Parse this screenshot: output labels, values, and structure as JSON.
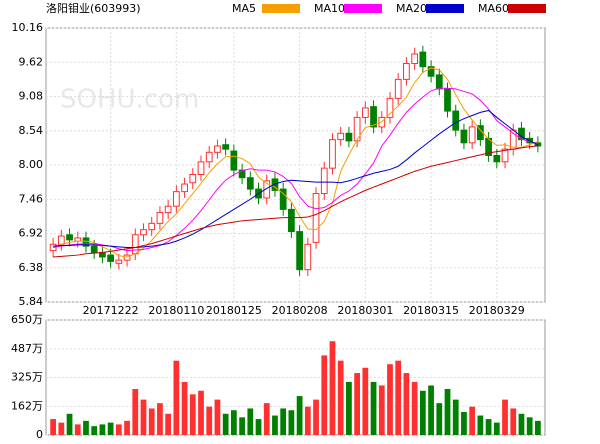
{
  "chart_data": {
    "type": "candlestick",
    "title": "洛阳钼业(603993)",
    "watermark": "SOHU.com",
    "categories": [
      null,
      null,
      null,
      null,
      null,
      null,
      null,
      "20171222",
      null,
      null,
      null,
      null,
      null,
      null,
      null,
      "20180110",
      null,
      null,
      null,
      null,
      null,
      null,
      "20180125",
      null,
      null,
      null,
      null,
      null,
      null,
      null,
      "20180208",
      null,
      null,
      null,
      null,
      null,
      null,
      null,
      "20180301",
      null,
      null,
      null,
      null,
      null,
      null,
      null,
      "20180315",
      null,
      null,
      null,
      null,
      null,
      null,
      null,
      "20180329",
      null,
      null,
      null,
      null,
      null
    ],
    "open": [
      6.65,
      6.75,
      6.9,
      6.8,
      6.85,
      6.72,
      6.62,
      6.58,
      6.45,
      6.5,
      6.6,
      6.9,
      6.98,
      7.08,
      7.25,
      7.35,
      7.58,
      7.72,
      7.85,
      8.05,
      8.2,
      8.32,
      8.22,
      7.92,
      7.8,
      7.62,
      7.48,
      7.78,
      7.62,
      7.3,
      6.95,
      6.35,
      6.78,
      7.55,
      7.95,
      8.4,
      8.5,
      8.38,
      8.75,
      8.92,
      8.6,
      8.75,
      9.05,
      9.35,
      9.6,
      9.78,
      9.55,
      9.42,
      9.2,
      8.85,
      8.55,
      8.35,
      8.62,
      8.42,
      8.15,
      8.05,
      8.25,
      8.58,
      8.42,
      8.35
    ],
    "high": [
      6.85,
      6.98,
      7.0,
      6.95,
      6.95,
      6.82,
      6.72,
      6.68,
      6.6,
      6.68,
      7.0,
      7.08,
      7.18,
      7.35,
      7.45,
      7.68,
      7.8,
      7.95,
      8.15,
      8.3,
      8.4,
      8.42,
      8.32,
      8.02,
      7.9,
      7.72,
      7.85,
      7.88,
      7.72,
      7.4,
      7.05,
      6.85,
      7.65,
      8.05,
      8.5,
      8.6,
      8.6,
      8.85,
      9.0,
      9.02,
      8.85,
      9.15,
      9.45,
      9.7,
      9.85,
      9.88,
      9.65,
      9.52,
      9.3,
      8.95,
      8.65,
      8.7,
      8.72,
      8.52,
      8.25,
      8.35,
      8.65,
      8.68,
      8.52,
      8.45
    ],
    "low": [
      6.55,
      6.65,
      6.72,
      6.7,
      6.62,
      6.52,
      6.45,
      6.38,
      6.35,
      6.4,
      6.5,
      6.8,
      6.88,
      6.98,
      7.15,
      7.25,
      7.48,
      7.62,
      7.75,
      7.95,
      8.1,
      8.15,
      7.82,
      7.7,
      7.52,
      7.38,
      7.38,
      7.5,
      7.2,
      6.85,
      6.25,
      6.25,
      6.68,
      7.45,
      7.85,
      8.3,
      8.28,
      8.28,
      8.65,
      8.5,
      8.5,
      8.65,
      8.95,
      9.25,
      9.5,
      9.45,
      9.3,
      9.1,
      8.75,
      8.45,
      8.25,
      8.25,
      8.3,
      8.05,
      7.95,
      7.95,
      8.15,
      8.3,
      8.25,
      8.2
    ],
    "close": [
      6.75,
      6.88,
      6.82,
      6.85,
      6.72,
      6.62,
      6.55,
      6.48,
      6.5,
      6.58,
      6.9,
      6.98,
      7.08,
      7.25,
      7.35,
      7.58,
      7.7,
      7.85,
      8.05,
      8.2,
      8.3,
      8.25,
      7.92,
      7.8,
      7.62,
      7.48,
      7.75,
      7.6,
      7.3,
      6.95,
      6.35,
      6.75,
      7.55,
      7.95,
      8.4,
      8.5,
      8.38,
      8.75,
      8.9,
      8.6,
      8.75,
      9.05,
      9.35,
      9.6,
      9.75,
      9.55,
      9.4,
      9.2,
      8.85,
      8.55,
      8.35,
      8.6,
      8.4,
      8.15,
      8.05,
      8.25,
      8.55,
      8.4,
      8.35,
      8.3
    ],
    "volume": [
      90,
      70,
      120,
      60,
      80,
      50,
      60,
      70,
      60,
      80,
      260,
      200,
      150,
      180,
      120,
      420,
      300,
      230,
      250,
      160,
      200,
      120,
      140,
      100,
      150,
      90,
      180,
      110,
      150,
      140,
      220,
      160,
      200,
      450,
      530,
      420,
      300,
      350,
      380,
      300,
      280,
      400,
      420,
      350,
      300,
      250,
      280,
      180,
      260,
      200,
      130,
      160,
      110,
      90,
      70,
      200,
      150,
      120,
      100,
      80
    ],
    "series": [
      {
        "name": "MA5",
        "color": "#f5a000",
        "values": [
          6.7,
          6.75,
          6.78,
          6.8,
          6.8,
          6.78,
          6.71,
          6.65,
          6.57,
          6.55,
          6.6,
          6.69,
          6.81,
          6.96,
          7.11,
          7.23,
          7.39,
          7.55,
          7.71,
          7.88,
          8.02,
          8.13,
          8.14,
          8.1,
          8.02,
          7.81,
          7.71,
          7.65,
          7.55,
          7.42,
          7.19,
          6.99,
          6.98,
          7.11,
          7.4,
          7.9,
          8.16,
          8.4,
          8.59,
          8.63,
          8.68,
          8.81,
          8.93,
          9.07,
          9.3,
          9.46,
          9.53,
          9.5,
          9.35,
          9.11,
          8.88,
          8.71,
          8.55,
          8.41,
          8.31,
          8.32,
          8.28,
          8.28,
          8.32,
          8.37
        ]
      },
      {
        "name": "MA10",
        "color": "#ff00ff",
        "values": [
          6.7,
          6.72,
          6.74,
          6.75,
          6.76,
          6.76,
          6.74,
          6.72,
          6.68,
          6.65,
          6.66,
          6.67,
          6.7,
          6.73,
          6.79,
          6.89,
          7.0,
          7.13,
          7.28,
          7.45,
          7.62,
          7.76,
          7.85,
          7.91,
          7.94,
          7.92,
          7.92,
          7.89,
          7.82,
          7.71,
          7.5,
          7.35,
          7.31,
          7.33,
          7.41,
          7.52,
          7.59,
          7.7,
          7.86,
          8.03,
          8.3,
          8.47,
          8.66,
          8.83,
          8.96,
          9.07,
          9.17,
          9.21,
          9.21,
          9.2,
          9.16,
          9.12,
          9.02,
          8.88,
          8.7,
          8.6,
          8.5,
          8.41,
          8.37,
          8.34
        ]
      },
      {
        "name": "MA20",
        "color": "#0000cc",
        "values": [
          6.72,
          6.73,
          6.73,
          6.74,
          6.74,
          6.74,
          6.73,
          6.72,
          6.71,
          6.7,
          6.7,
          6.71,
          6.72,
          6.74,
          6.76,
          6.8,
          6.85,
          6.91,
          6.98,
          7.06,
          7.14,
          7.22,
          7.3,
          7.38,
          7.46,
          7.55,
          7.63,
          7.7,
          7.74,
          7.76,
          7.75,
          7.74,
          7.73,
          7.73,
          7.73,
          7.72,
          7.75,
          7.79,
          7.83,
          7.87,
          7.9,
          7.93,
          7.98,
          8.08,
          8.19,
          8.29,
          8.39,
          8.49,
          8.58,
          8.67,
          8.73,
          8.78,
          8.83,
          8.86,
          8.75,
          8.65,
          8.55,
          8.45,
          8.38,
          8.32
        ]
      },
      {
        "name": "MA60",
        "color": "#cc0000",
        "values": [
          6.55,
          6.56,
          6.57,
          6.58,
          6.6,
          6.61,
          6.62,
          6.64,
          6.66,
          6.68,
          6.7,
          6.73,
          6.76,
          6.8,
          6.84,
          6.88,
          6.92,
          6.96,
          7.0,
          7.03,
          7.06,
          7.08,
          7.1,
          7.12,
          7.13,
          7.14,
          7.15,
          7.16,
          7.17,
          7.17,
          7.17,
          7.18,
          7.22,
          7.28,
          7.35,
          7.42,
          7.48,
          7.54,
          7.6,
          7.65,
          7.7,
          7.75,
          7.8,
          7.85,
          7.9,
          7.94,
          7.98,
          8.01,
          8.04,
          8.07,
          8.1,
          8.13,
          8.16,
          8.19,
          8.21,
          8.23,
          8.25,
          8.27,
          8.29,
          8.3
        ]
      }
    ],
    "up_color": "#ff3030",
    "down_color": "#008000",
    "ylim": [
      5.84,
      10.16
    ],
    "yticks": [
      5.84,
      6.38,
      6.92,
      7.46,
      {
        "value": 8.0,
        "label": "8.00"
      },
      8.54,
      9.08,
      9.62,
      10.16
    ],
    "volume_ylim": [
      0,
      650
    ],
    "volume_yticks": [
      {
        "value": 0,
        "label": "0"
      },
      {
        "value": 162,
        "label": "162万"
      },
      {
        "value": 325,
        "label": "325万"
      },
      {
        "value": 487,
        "label": "487万"
      },
      {
        "value": 650,
        "label": "650万"
      }
    ],
    "grid": true
  }
}
